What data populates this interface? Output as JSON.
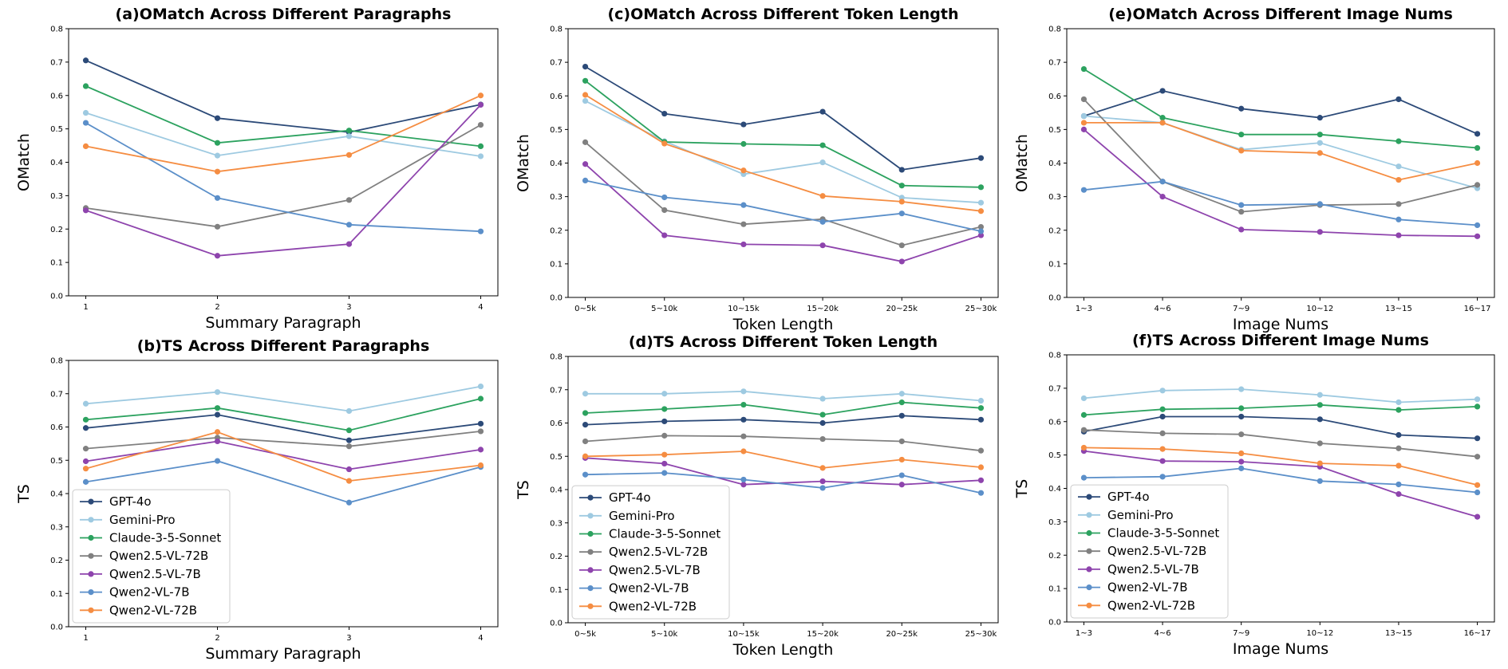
{
  "legend_entries": [
    "GPT-4o",
    "Gemini-Pro",
    "Claude-3-5-Sonnet",
    "Qwen2.5-VL-72B",
    "Qwen2.5-VL-7B",
    "Qwen2-VL-7B",
    "Qwen2-VL-72B"
  ],
  "colors": [
    "#2c4a78",
    "#9ecae1",
    "#2ca25f",
    "#808080",
    "#8e44ad",
    "#5b8fc9",
    "#f58d42"
  ],
  "chart_data": [
    {
      "type": "line",
      "title": "(a)OMatch Across Different Paragraphs",
      "xlabel": "Summary Paragraph",
      "ylabel": "OMatch",
      "categories": [
        "1",
        "2",
        "3",
        "4"
      ],
      "ylim": [
        0,
        0.8
      ],
      "yticks": [
        "0.0",
        "0.1",
        "0.2",
        "0.3",
        "0.4",
        "0.5",
        "0.6",
        "0.7",
        "0.8"
      ],
      "legend": false,
      "series": [
        {
          "name": "GPT-4o",
          "values": [
            0.705,
            0.532,
            0.49,
            0.573
          ]
        },
        {
          "name": "Gemini-Pro",
          "values": [
            0.548,
            0.42,
            0.478,
            0.418
          ]
        },
        {
          "name": "Claude-3-5-Sonnet",
          "values": [
            0.628,
            0.458,
            0.495,
            0.448
          ]
        },
        {
          "name": "Qwen2.5-VL-72B",
          "values": [
            0.263,
            0.207,
            0.287,
            0.512
          ]
        },
        {
          "name": "Qwen2.5-VL-7B",
          "values": [
            0.256,
            0.12,
            0.155,
            0.572
          ]
        },
        {
          "name": "Qwen2-VL-7B",
          "values": [
            0.518,
            0.293,
            0.213,
            0.193
          ]
        },
        {
          "name": "Qwen2-VL-72B",
          "values": [
            0.448,
            0.372,
            0.422,
            0.6
          ]
        }
      ]
    },
    {
      "type": "line",
      "title": "(c)OMatch Across Different Token Length",
      "xlabel": "Token Length",
      "ylabel": "OMatch",
      "categories": [
        "0~5k",
        "5~10k",
        "10~15k",
        "15~20k",
        "20~25k",
        "25~30k"
      ],
      "ylim": [
        0,
        0.8
      ],
      "yticks": [
        "0.0",
        "0.1",
        "0.2",
        "0.3",
        "0.4",
        "0.5",
        "0.6",
        "0.7",
        "0.8"
      ],
      "legend": false,
      "series": [
        {
          "name": "GPT-4o",
          "values": [
            0.687,
            0.547,
            0.515,
            0.553,
            0.38,
            0.415
          ]
        },
        {
          "name": "Gemini-Pro",
          "values": [
            0.585,
            0.465,
            0.367,
            0.402,
            0.297,
            0.282
          ]
        },
        {
          "name": "Claude-3-5-Sonnet",
          "values": [
            0.645,
            0.463,
            0.457,
            0.453,
            0.333,
            0.328
          ]
        },
        {
          "name": "Qwen2.5-VL-72B",
          "values": [
            0.462,
            0.26,
            0.218,
            0.233,
            0.155,
            0.21
          ]
        },
        {
          "name": "Qwen2.5-VL-7B",
          "values": [
            0.397,
            0.185,
            0.158,
            0.155,
            0.107,
            0.185
          ]
        },
        {
          "name": "Qwen2-VL-7B",
          "values": [
            0.348,
            0.298,
            0.275,
            0.225,
            0.25,
            0.197
          ]
        },
        {
          "name": "Qwen2-VL-72B",
          "values": [
            0.603,
            0.458,
            0.378,
            0.302,
            0.285,
            0.257
          ]
        }
      ]
    },
    {
      "type": "line",
      "title": "(e)OMatch Across Different Image Nums",
      "xlabel": "Image Nums",
      "ylabel": "OMatch",
      "categories": [
        "1~3",
        "4~6",
        "7~9",
        "10~12",
        "13~15",
        "16~17"
      ],
      "ylim": [
        0,
        0.8
      ],
      "yticks": [
        "0.0",
        "0.1",
        "0.2",
        "0.3",
        "0.4",
        "0.5",
        "0.6",
        "0.7",
        "0.8"
      ],
      "legend": false,
      "series": [
        {
          "name": "GPT-4o",
          "values": [
            0.54,
            0.615,
            0.562,
            0.535,
            0.59,
            0.487
          ]
        },
        {
          "name": "Gemini-Pro",
          "values": [
            0.54,
            0.52,
            0.44,
            0.46,
            0.39,
            0.325
          ]
        },
        {
          "name": "Claude-3-5-Sonnet",
          "values": [
            0.68,
            0.535,
            0.485,
            0.485,
            0.465,
            0.445
          ]
        },
        {
          "name": "Qwen2.5-VL-72B",
          "values": [
            0.59,
            0.345,
            0.255,
            0.275,
            0.278,
            0.335
          ]
        },
        {
          "name": "Qwen2.5-VL-7B",
          "values": [
            0.5,
            0.3,
            0.202,
            0.195,
            0.185,
            0.182
          ]
        },
        {
          "name": "Qwen2-VL-7B",
          "values": [
            0.32,
            0.345,
            0.275,
            0.278,
            0.232,
            0.215
          ]
        },
        {
          "name": "Qwen2-VL-72B",
          "values": [
            0.52,
            0.52,
            0.437,
            0.43,
            0.35,
            0.4
          ]
        }
      ]
    },
    {
      "type": "line",
      "title": "(b)TS Across Different Paragraphs",
      "xlabel": "Summary Paragraph",
      "ylabel": "TS",
      "categories": [
        "1",
        "2",
        "3",
        "4"
      ],
      "ylim": [
        0,
        0.8
      ],
      "yticks": [
        "0.0",
        "0.1",
        "0.2",
        "0.3",
        "0.4",
        "0.5",
        "0.6",
        "0.7",
        "0.8"
      ],
      "legend": true,
      "legend_position": "lower-left",
      "series": [
        {
          "name": "GPT-4o",
          "values": [
            0.597,
            0.637,
            0.56,
            0.61
          ]
        },
        {
          "name": "Gemini-Pro",
          "values": [
            0.67,
            0.705,
            0.648,
            0.722
          ]
        },
        {
          "name": "Claude-3-5-Sonnet",
          "values": [
            0.622,
            0.657,
            0.59,
            0.685
          ]
        },
        {
          "name": "Qwen2.5-VL-72B",
          "values": [
            0.535,
            0.568,
            0.542,
            0.587
          ]
        },
        {
          "name": "Qwen2.5-VL-7B",
          "values": [
            0.497,
            0.557,
            0.473,
            0.532
          ]
        },
        {
          "name": "Qwen2-VL-7B",
          "values": [
            0.435,
            0.498,
            0.373,
            0.48
          ]
        },
        {
          "name": "Qwen2-VL-72B",
          "values": [
            0.475,
            0.585,
            0.438,
            0.485
          ]
        }
      ]
    },
    {
      "type": "line",
      "title": "(d)TS Across Different Token Length",
      "xlabel": "Token Length",
      "ylabel": "TS",
      "categories": [
        "0~5k",
        "5~10k",
        "10~15k",
        "15~20k",
        "20~25k",
        "25~30k"
      ],
      "ylim": [
        0,
        0.8
      ],
      "yticks": [
        "0.0",
        "0.1",
        "0.2",
        "0.3",
        "0.4",
        "0.5",
        "0.6",
        "0.7",
        "0.8"
      ],
      "legend": true,
      "legend_position": "lower-left",
      "series": [
        {
          "name": "GPT-4o",
          "values": [
            0.595,
            0.605,
            0.61,
            0.6,
            0.622,
            0.61
          ]
        },
        {
          "name": "Gemini-Pro",
          "values": [
            0.688,
            0.688,
            0.695,
            0.673,
            0.688,
            0.667
          ]
        },
        {
          "name": "Claude-3-5-Sonnet",
          "values": [
            0.63,
            0.642,
            0.655,
            0.625,
            0.662,
            0.645
          ]
        },
        {
          "name": "Qwen2.5-VL-72B",
          "values": [
            0.545,
            0.562,
            0.56,
            0.552,
            0.545,
            0.517
          ]
        },
        {
          "name": "Qwen2.5-VL-7B",
          "values": [
            0.495,
            0.478,
            0.415,
            0.425,
            0.415,
            0.428
          ]
        },
        {
          "name": "Qwen2-VL-7B",
          "values": [
            0.445,
            0.45,
            0.43,
            0.405,
            0.443,
            0.39
          ]
        },
        {
          "name": "Qwen2-VL-72B",
          "values": [
            0.5,
            0.505,
            0.515,
            0.465,
            0.49,
            0.467
          ]
        }
      ]
    },
    {
      "type": "line",
      "title": "(f)TS Across Different Image Nums",
      "xlabel": "Image Nums",
      "ylabel": "TS",
      "categories": [
        "1~3",
        "4~6",
        "7~9",
        "10~12",
        "13~15",
        "16~17"
      ],
      "ylim": [
        0,
        0.8
      ],
      "yticks": [
        "0.0",
        "0.1",
        "0.2",
        "0.3",
        "0.4",
        "0.5",
        "0.6",
        "0.7",
        "0.8"
      ],
      "legend": true,
      "legend_position": "lower-left",
      "series": [
        {
          "name": "GPT-4o",
          "values": [
            0.57,
            0.615,
            0.615,
            0.607,
            0.56,
            0.55
          ]
        },
        {
          "name": "Gemini-Pro",
          "values": [
            0.67,
            0.693,
            0.697,
            0.68,
            0.658,
            0.667
          ]
        },
        {
          "name": "Claude-3-5-Sonnet",
          "values": [
            0.62,
            0.637,
            0.64,
            0.65,
            0.635,
            0.645
          ]
        },
        {
          "name": "Qwen2.5-VL-72B",
          "values": [
            0.575,
            0.565,
            0.562,
            0.535,
            0.52,
            0.495
          ]
        },
        {
          "name": "Qwen2.5-VL-7B",
          "values": [
            0.512,
            0.482,
            0.48,
            0.465,
            0.383,
            0.315
          ]
        },
        {
          "name": "Qwen2-VL-7B",
          "values": [
            0.432,
            0.435,
            0.46,
            0.422,
            0.412,
            0.388
          ]
        },
        {
          "name": "Qwen2-VL-72B",
          "values": [
            0.522,
            0.518,
            0.505,
            0.475,
            0.468,
            0.41
          ]
        }
      ]
    }
  ]
}
